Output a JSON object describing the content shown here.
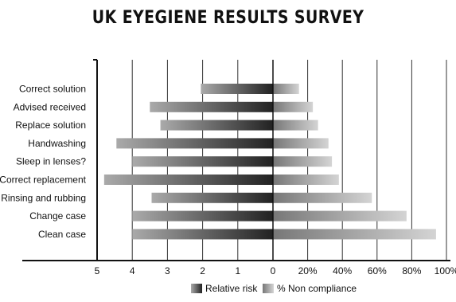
{
  "chart_data": {
    "type": "bar",
    "title": "UK EYEGIENE RESULTS SURVEY",
    "orientation": "horizontal-diverging",
    "categories": [
      "Correct solution",
      "Advised received",
      "Replace solution",
      "Handwashing",
      "Sleep in lenses?",
      "Correct replacement",
      "Rinsing and rubbing",
      "Change case",
      "Clean case"
    ],
    "series": [
      {
        "name": "Relative risk",
        "side": "left",
        "values": [
          2.05,
          3.5,
          3.2,
          4.45,
          4.0,
          4.8,
          3.45,
          4.0,
          4.0
        ],
        "xlim": [
          0,
          5
        ],
        "ticks": [
          "5",
          "4",
          "3",
          "2",
          "1",
          "0"
        ]
      },
      {
        "name": "% Non compliance",
        "side": "right",
        "values": [
          15,
          23,
          26,
          32,
          34,
          38,
          57,
          77,
          94
        ],
        "xlim": [
          0,
          100
        ],
        "ticks": [
          "20%",
          "40%",
          "60%",
          "80%",
          "100%"
        ]
      }
    ],
    "grid": true,
    "legend": "bottom-center",
    "colors": {
      "risk_dark": "#222222",
      "risk_light": "#aaaaaa",
      "nc_dark": "#777777",
      "nc_light": "#d4d4d4"
    }
  }
}
